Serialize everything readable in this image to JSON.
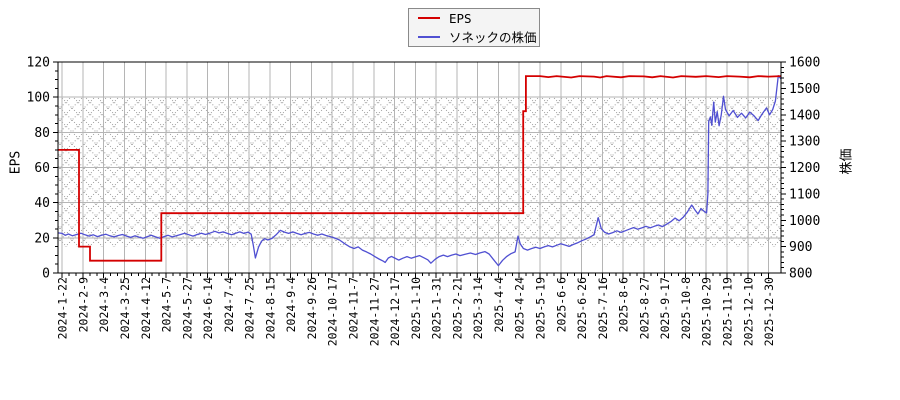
{
  "chart_data": {
    "type": "line",
    "title": "",
    "legend": {
      "position": "top-center",
      "entries": [
        {
          "label": "EPS",
          "color": "#d40000"
        },
        {
          "label": "ソネックの株価",
          "color": "#5050d2"
        }
      ]
    },
    "x_axis": {
      "labels": [
        "2024-1-22",
        "2024-2-9",
        "2024-3-4",
        "2024-3-25",
        "2024-4-12",
        "2024-5-7",
        "2024-5-27",
        "2024-6-14",
        "2024-7-4",
        "2024-7-25",
        "2024-8-15",
        "2024-9-4",
        "2024-9-26",
        "2024-10-17",
        "2024-11-7",
        "2024-11-27",
        "2024-12-17",
        "2025-1-10",
        "2025-1-31",
        "2025-2-21",
        "2025-3-14",
        "2025-4-4",
        "2025-4-24",
        "2025-5-19",
        "2025-6-6",
        "2025-6-26",
        "2025-7-16",
        "2025-8-6",
        "2025-8-27",
        "2025-9-17",
        "2025-10-8",
        "2025-10-29",
        "2025-11-19",
        "2025-12-10",
        "2025-12-30"
      ],
      "tick_label_rotation": -90
    },
    "y_axis_left": {
      "label": "EPS",
      "min": 0,
      "max": 120,
      "tick_step": 20,
      "ticks": [
        0,
        20,
        40,
        60,
        80,
        100,
        120
      ],
      "minor_step": 5
    },
    "y_axis_right": {
      "label": "株価",
      "min": 800,
      "max": 1600,
      "tick_step": 100,
      "ticks": [
        800,
        900,
        1000,
        1100,
        1200,
        1300,
        1400,
        1500,
        1600
      ],
      "minor_step": 20
    },
    "grid": {
      "vertical": "per-x-label",
      "horizontal": "per-left-tick",
      "color": "#b5b5b5"
    },
    "hatch_band": {
      "top_at_left_eps": 100,
      "bottom_at_right_price": 900,
      "pattern": "dotted-crosshatch",
      "color": "#9a9a9a"
    },
    "series": [
      {
        "name": "EPS",
        "axis": "left",
        "color": "#d40000",
        "style": "step",
        "points": [
          [
            -0.2,
            70
          ],
          [
            0.81,
            70
          ],
          [
            0.81,
            15
          ],
          [
            1.34,
            15
          ],
          [
            1.34,
            7
          ],
          [
            4.77,
            7
          ],
          [
            4.77,
            34
          ],
          [
            22.19,
            34
          ],
          [
            22.19,
            92
          ],
          [
            22.32,
            92
          ],
          [
            22.32,
            112
          ],
          [
            23,
            112
          ],
          [
            23.4,
            111.4
          ],
          [
            23.8,
            112
          ],
          [
            24.5,
            111.2
          ],
          [
            24.9,
            112
          ],
          [
            25.6,
            111.7
          ],
          [
            25.9,
            111.2
          ],
          [
            26.2,
            112
          ],
          [
            26.9,
            111.3
          ],
          [
            27.3,
            112
          ],
          [
            28,
            111.8
          ],
          [
            28.4,
            111.3
          ],
          [
            28.8,
            112
          ],
          [
            29.4,
            111.2
          ],
          [
            29.8,
            112
          ],
          [
            30.5,
            111.6
          ],
          [
            31,
            112
          ],
          [
            31.6,
            111.4
          ],
          [
            32,
            112
          ],
          [
            32.6,
            111.7
          ],
          [
            33.1,
            111.3
          ],
          [
            33.5,
            112
          ],
          [
            34,
            111.7
          ],
          [
            34.6,
            112
          ]
        ]
      },
      {
        "name": "ソネックの株価",
        "axis": "right",
        "color": "#5050d2",
        "style": "line",
        "points": [
          [
            -0.2,
            952
          ],
          [
            0,
            950
          ],
          [
            0.15,
            943
          ],
          [
            0.3,
            948
          ],
          [
            0.5,
            941
          ],
          [
            0.7,
            946
          ],
          [
            0.9,
            951
          ],
          [
            1.1,
            945
          ],
          [
            1.3,
            940
          ],
          [
            1.5,
            945
          ],
          [
            1.7,
            938
          ],
          [
            1.9,
            943
          ],
          [
            2.1,
            947
          ],
          [
            2.3,
            941
          ],
          [
            2.5,
            937
          ],
          [
            2.7,
            942
          ],
          [
            2.9,
            946
          ],
          [
            3.1,
            940
          ],
          [
            3.3,
            935
          ],
          [
            3.5,
            941
          ],
          [
            3.7,
            936
          ],
          [
            3.9,
            932
          ],
          [
            4.1,
            938
          ],
          [
            4.3,
            943
          ],
          [
            4.5,
            937
          ],
          [
            4.7,
            932
          ],
          [
            4.9,
            938
          ],
          [
            5.1,
            943
          ],
          [
            5.3,
            937
          ],
          [
            5.5,
            941
          ],
          [
            5.7,
            946
          ],
          [
            5.9,
            951
          ],
          [
            6.1,
            945
          ],
          [
            6.3,
            940
          ],
          [
            6.5,
            946
          ],
          [
            6.7,
            951
          ],
          [
            6.9,
            946
          ],
          [
            7.1,
            951
          ],
          [
            7.35,
            958
          ],
          [
            7.55,
            952
          ],
          [
            7.75,
            956
          ],
          [
            7.95,
            950
          ],
          [
            8.15,
            945
          ],
          [
            8.35,
            951
          ],
          [
            8.55,
            956
          ],
          [
            8.75,
            950
          ],
          [
            8.95,
            955
          ],
          [
            9.1,
            947
          ],
          [
            9.2,
            905
          ],
          [
            9.3,
            857
          ],
          [
            9.45,
            898
          ],
          [
            9.6,
            921
          ],
          [
            9.75,
            930
          ],
          [
            9.9,
            925
          ],
          [
            10.1,
            931
          ],
          [
            10.3,
            945
          ],
          [
            10.5,
            962
          ],
          [
            10.7,
            955
          ],
          [
            10.9,
            950
          ],
          [
            11.1,
            956
          ],
          [
            11.3,
            950
          ],
          [
            11.5,
            945
          ],
          [
            11.7,
            950
          ],
          [
            11.9,
            954
          ],
          [
            12.1,
            948
          ],
          [
            12.3,
            943
          ],
          [
            12.5,
            948
          ],
          [
            12.7,
            942
          ],
          [
            12.9,
            938
          ],
          [
            13.1,
            933
          ],
          [
            13.35,
            925
          ],
          [
            13.6,
            911
          ],
          [
            13.85,
            899
          ],
          [
            14.05,
            893
          ],
          [
            14.25,
            899
          ],
          [
            14.45,
            887
          ],
          [
            14.65,
            880
          ],
          [
            14.85,
            872
          ],
          [
            15.05,
            862
          ],
          [
            15.25,
            853
          ],
          [
            15.45,
            845
          ],
          [
            15.55,
            840
          ],
          [
            15.7,
            857
          ],
          [
            15.85,
            863
          ],
          [
            16,
            857
          ],
          [
            16.2,
            849
          ],
          [
            16.4,
            856
          ],
          [
            16.6,
            862
          ],
          [
            16.8,
            856
          ],
          [
            17,
            861
          ],
          [
            17.2,
            866
          ],
          [
            17.4,
            858
          ],
          [
            17.6,
            850
          ],
          [
            17.75,
            837
          ],
          [
            17.95,
            852
          ],
          [
            18.15,
            862
          ],
          [
            18.35,
            868
          ],
          [
            18.55,
            862
          ],
          [
            18.75,
            868
          ],
          [
            18.95,
            872
          ],
          [
            19.15,
            866
          ],
          [
            19.4,
            871
          ],
          [
            19.65,
            876
          ],
          [
            19.9,
            870
          ],
          [
            20.1,
            876
          ],
          [
            20.35,
            881
          ],
          [
            20.55,
            872
          ],
          [
            20.75,
            852
          ],
          [
            21,
            828
          ],
          [
            21.2,
            848
          ],
          [
            21.4,
            863
          ],
          [
            21.6,
            873
          ],
          [
            21.8,
            880
          ],
          [
            21.94,
            940
          ],
          [
            22.05,
            910
          ],
          [
            22.2,
            893
          ],
          [
            22.4,
            887
          ],
          [
            22.6,
            893
          ],
          [
            22.8,
            898
          ],
          [
            23,
            893
          ],
          [
            23.2,
            899
          ],
          [
            23.4,
            904
          ],
          [
            23.6,
            899
          ],
          [
            23.8,
            905
          ],
          [
            24,
            911
          ],
          [
            24.2,
            906
          ],
          [
            24.4,
            901
          ],
          [
            24.6,
            908
          ],
          [
            24.8,
            914
          ],
          [
            25,
            922
          ],
          [
            25.2,
            928
          ],
          [
            25.4,
            936
          ],
          [
            25.6,
            945
          ],
          [
            25.8,
            1010
          ],
          [
            25.95,
            968
          ],
          [
            26.1,
            955
          ],
          [
            26.3,
            948
          ],
          [
            26.5,
            953
          ],
          [
            26.7,
            960
          ],
          [
            26.9,
            954
          ],
          [
            27.1,
            960
          ],
          [
            27.3,
            966
          ],
          [
            27.5,
            972
          ],
          [
            27.7,
            966
          ],
          [
            27.9,
            971
          ],
          [
            28.1,
            977
          ],
          [
            28.3,
            971
          ],
          [
            28.5,
            977
          ],
          [
            28.7,
            982
          ],
          [
            28.9,
            976
          ],
          [
            29.1,
            985
          ],
          [
            29.3,
            995
          ],
          [
            29.5,
            1008
          ],
          [
            29.7,
            998
          ],
          [
            29.9,
            1012
          ],
          [
            30.1,
            1032
          ],
          [
            30.3,
            1058
          ],
          [
            30.45,
            1040
          ],
          [
            30.6,
            1024
          ],
          [
            30.75,
            1044
          ],
          [
            30.9,
            1034
          ],
          [
            31.02,
            1028
          ],
          [
            31.08,
            1100
          ],
          [
            31.12,
            1374
          ],
          [
            31.2,
            1392
          ],
          [
            31.27,
            1360
          ],
          [
            31.36,
            1448
          ],
          [
            31.44,
            1372
          ],
          [
            31.53,
            1412
          ],
          [
            31.62,
            1358
          ],
          [
            31.72,
            1398
          ],
          [
            31.83,
            1470
          ],
          [
            31.93,
            1420
          ],
          [
            32.1,
            1396
          ],
          [
            32.3,
            1416
          ],
          [
            32.5,
            1390
          ],
          [
            32.7,
            1406
          ],
          [
            32.9,
            1388
          ],
          [
            33.1,
            1410
          ],
          [
            33.3,
            1396
          ],
          [
            33.5,
            1378
          ],
          [
            33.7,
            1404
          ],
          [
            33.9,
            1426
          ],
          [
            34.05,
            1400
          ],
          [
            34.2,
            1420
          ],
          [
            34.33,
            1452
          ],
          [
            34.47,
            1548
          ],
          [
            34.6,
            1536
          ]
        ]
      }
    ]
  }
}
